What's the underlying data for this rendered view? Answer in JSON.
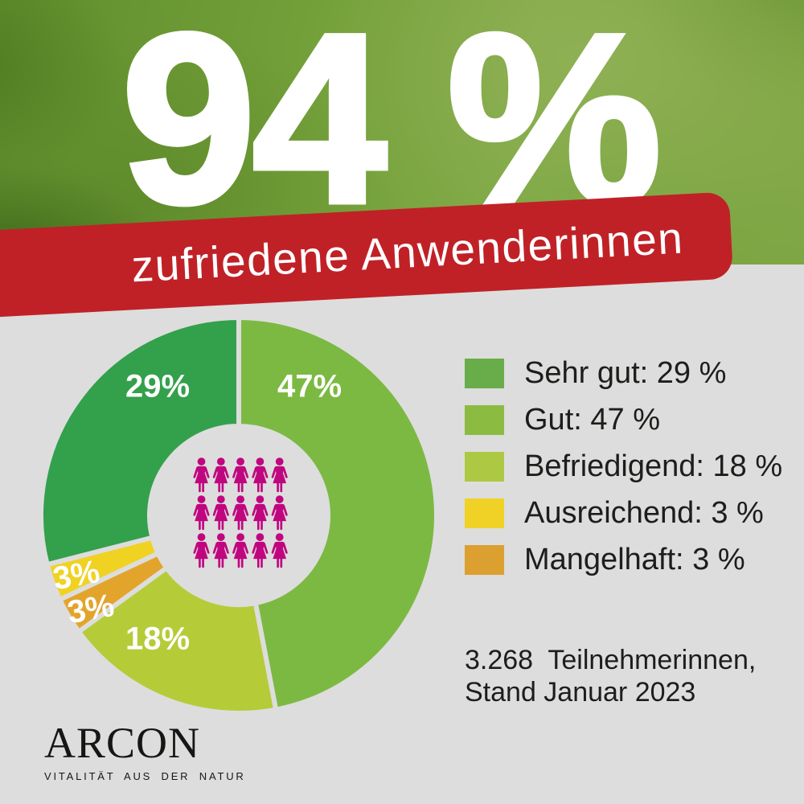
{
  "colors": {
    "background_gray": "#dddddd",
    "banner_red": "#c02127",
    "headline_white": "#ffffff",
    "text_black": "#1d1d1b",
    "person_icon_magenta": "#c0067f"
  },
  "header": {
    "headline": "94 %",
    "banner_label": "zufriedene Anwenderinnen"
  },
  "chart_data": {
    "type": "pie",
    "variant": "donut",
    "title": "zufriedene Anwenderinnen: 94 %",
    "units": "%",
    "direction": "clockwise",
    "start_angle_deg": 0,
    "inner_radius_ratio": 0.45,
    "slices_clockwise": [
      {
        "name": "Gut",
        "value": 47,
        "label": "47%",
        "color": "#7cb942"
      },
      {
        "name": "Befriedigend",
        "value": 18,
        "label": "18%",
        "color": "#b5cc38"
      },
      {
        "name": "Mangelhaft",
        "value": 3,
        "label": "3%",
        "color": "#e2a42b"
      },
      {
        "name": "Ausreichend",
        "value": 3,
        "label": "3%",
        "color": "#f0d222"
      },
      {
        "name": "Sehr gut",
        "value": 29,
        "label": "29%",
        "color": "#33a04c"
      }
    ],
    "legend_position": "right",
    "legend": [
      {
        "label": "Sehr gut: 29 %",
        "color": "#68ad4a"
      },
      {
        "label": "Gut: 47 %",
        "color": "#8cbb42"
      },
      {
        "label": "Befriedigend: 18 %",
        "color": "#adc944"
      },
      {
        "label": "Ausreichend: 3 %",
        "color": "#f0d226"
      },
      {
        "label": "Mangelhaft: 3 %",
        "color": "#dba02f"
      }
    ],
    "center_icons": {
      "icon": "female-person-icon",
      "rows": 3,
      "cols": 5,
      "color": "#c0067f"
    }
  },
  "footnote": {
    "line1": "3.268  Teilnehmerinnen,",
    "line2": "Stand Januar 2023"
  },
  "brand": {
    "name": "ARCON",
    "tagline": "VITALITÄT AUS DER NATUR"
  }
}
